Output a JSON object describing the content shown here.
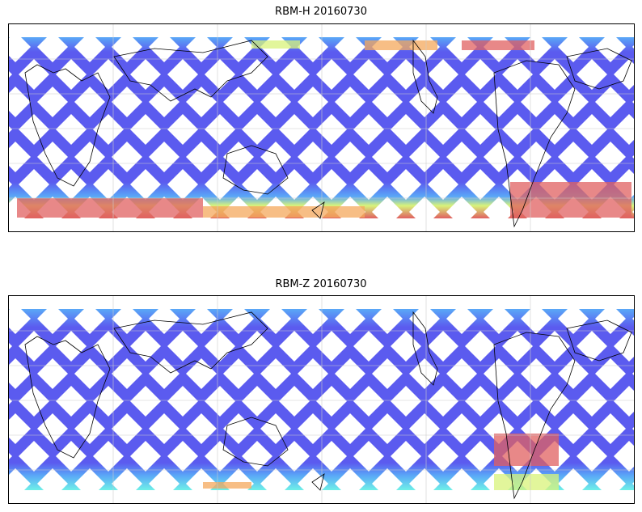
{
  "panels": [
    {
      "title": "RBM-H 20160730",
      "variant": "hot"
    },
    {
      "title": "RBM-Z 20160730",
      "variant": "cool"
    }
  ],
  "colors": {
    "low": "#5b5bef",
    "mid_low": "#5aa8f7",
    "mid": "#6ff0e8",
    "mid_high": "#d8f37a",
    "high": "#f4a85c",
    "max": "#e06060",
    "coast": "#000000",
    "grid": "#cccccc"
  }
}
